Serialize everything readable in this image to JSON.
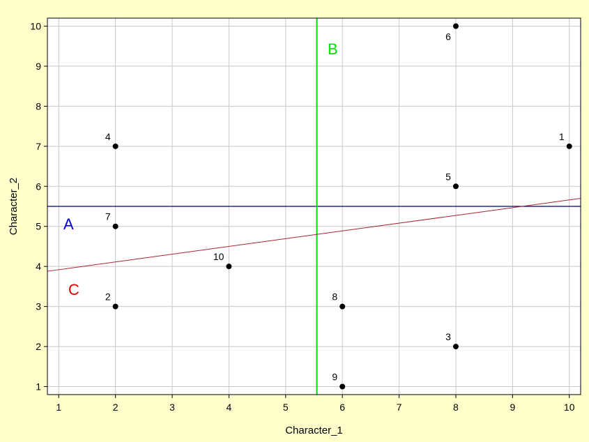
{
  "chart_data": {
    "type": "scatter",
    "xlabel": "Character_1",
    "ylabel": "Character_2",
    "xlim": [
      0.8,
      10.2
    ],
    "ylim": [
      0.8,
      10.2
    ],
    "xticks": [
      1,
      2,
      3,
      4,
      5,
      6,
      7,
      8,
      9,
      10
    ],
    "yticks": [
      1,
      2,
      3,
      4,
      5,
      6,
      7,
      8,
      9,
      10
    ],
    "grid": true,
    "colors": {
      "background": "#ffffcc",
      "plot_area": "#ffffff",
      "grid": "#c8c8c8",
      "point": "#000000",
      "line_A": "#000080",
      "line_B": "#00dd00",
      "line_C": "#aa2233",
      "label_A": "#0000dd",
      "label_B": "#00dd00",
      "label_C": "#dd0000"
    },
    "points": [
      {
        "label": "1",
        "x": 10,
        "y": 7
      },
      {
        "label": "2",
        "x": 2,
        "y": 3
      },
      {
        "label": "3",
        "x": 8,
        "y": 2
      },
      {
        "label": "4",
        "x": 2,
        "y": 7
      },
      {
        "label": "5",
        "x": 8,
        "y": 6
      },
      {
        "label": "6",
        "x": 8,
        "y": 10
      },
      {
        "label": "7",
        "x": 2,
        "y": 5
      },
      {
        "label": "8",
        "x": 6,
        "y": 3
      },
      {
        "label": "9",
        "x": 6,
        "y": 1
      },
      {
        "label": "10",
        "x": 4,
        "y": 4
      }
    ],
    "lines": [
      {
        "label": "A",
        "orientation": "horizontal",
        "y": 5.5
      },
      {
        "label": "B",
        "orientation": "vertical",
        "x": 5.55
      },
      {
        "label": "C",
        "orientation": "sloped",
        "x1": 0.8,
        "y1": 3.88,
        "x2": 10.2,
        "y2": 5.7
      }
    ]
  }
}
